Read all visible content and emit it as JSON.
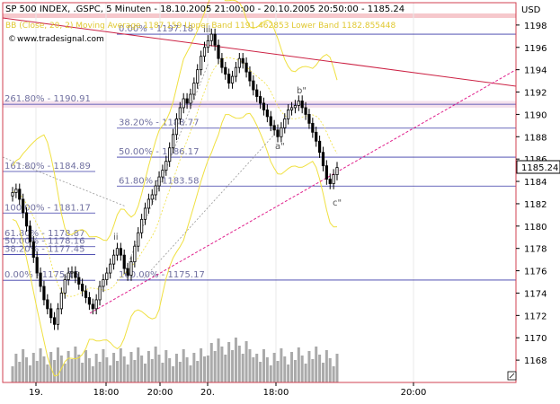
{
  "header": {
    "title": "SP 500 INDEX, .GSPC, 5 Minuten - 18.10.2005 21:00:00 - 20.10.2005 20:50:00 - 1185.24",
    "indicator": "BB (Close, 20, 2) Moving Average 1187.159 Upper Band 1191.462853 Lower Band 1182.855448",
    "source": "www.tradesignal.com"
  },
  "currency": "USD",
  "last_price": "1185.24",
  "colors": {
    "background": "#ffffff",
    "candles": "#000000",
    "bollinger": "#f0e040",
    "fib_lines": "#3a3aa8",
    "trend_upper": "#cc2244",
    "trend_lower": "#e0208c",
    "volume": "#aaaaaa",
    "header_band": "#f6c8cc"
  },
  "chart_data": {
    "type": "candlestick",
    "ylim": [
      1166,
      1200
    ],
    "y_ticks": [
      1168,
      1170,
      1172,
      1174,
      1176,
      1178,
      1180,
      1182,
      1184,
      1186,
      1188,
      1190,
      1192,
      1194,
      1196,
      1198
    ],
    "x_tick_labels": [
      "19.",
      "18:00",
      "20:00",
      "20.",
      "18:00",
      "20:00"
    ],
    "close_series": [
      1183.0,
      1183.3,
      1182.4,
      1181.2,
      1180.0,
      1178.6,
      1177.2,
      1175.8,
      1174.6,
      1173.4,
      1172.6,
      1171.8,
      1171.2,
      1172.6,
      1174.0,
      1175.2,
      1175.8,
      1175.9,
      1175.4,
      1174.8,
      1174.2,
      1173.6,
      1173.0,
      1172.6,
      1173.4,
      1174.6,
      1175.2,
      1175.8,
      1176.6,
      1177.4,
      1178.0,
      1177.4,
      1176.2,
      1175.6,
      1176.8,
      1178.2,
      1179.4,
      1180.6,
      1181.6,
      1182.4,
      1182.8,
      1183.6,
      1184.4,
      1185.0,
      1185.8,
      1187.0,
      1188.2,
      1189.6,
      1190.6,
      1191.4,
      1191.0,
      1191.8,
      1192.8,
      1194.0,
      1195.2,
      1196.0,
      1196.6,
      1197.18,
      1196.2,
      1195.0,
      1194.2,
      1193.6,
      1192.8,
      1193.4,
      1194.2,
      1195.0,
      1194.6,
      1193.8,
      1193.0,
      1192.2,
      1191.6,
      1191.0,
      1190.4,
      1189.8,
      1189.0,
      1188.6,
      1188.0,
      1188.8,
      1189.6,
      1190.4,
      1190.6,
      1190.8,
      1191.2,
      1190.6,
      1190.0,
      1189.2,
      1188.4,
      1187.6,
      1186.6,
      1185.4,
      1184.2,
      1183.8,
      1184.6,
      1185.24
    ],
    "fib_levels": [
      {
        "label": "0.00% - 1197.18",
        "value": 1197.18
      },
      {
        "label": "261.80% - 1190.91",
        "value": 1190.91
      },
      {
        "label": "38.20% - 1188.77",
        "value": 1188.77
      },
      {
        "label": "50.00% - 1186.17",
        "value": 1186.17
      },
      {
        "label": "161.80% - 1184.89",
        "value": 1184.89
      },
      {
        "label": "61.80% - 1183.58",
        "value": 1183.58
      },
      {
        "label": "100.00% - 1181.17",
        "value": 1181.17
      },
      {
        "label": "61.80% - 1178.87",
        "value": 1178.87
      },
      {
        "label": "50.00% - 1178.16",
        "value": 1178.16
      },
      {
        "label": "38.20% - 1177.45",
        "value": 1177.45
      },
      {
        "label": "0.00% - 1175.15",
        "value": 1175.15
      },
      {
        "label": "100.00% - 1175.17",
        "value": 1175.17
      }
    ],
    "wave_labels": [
      "iii",
      "b\"",
      "a\"",
      "c\"",
      "ii"
    ]
  }
}
